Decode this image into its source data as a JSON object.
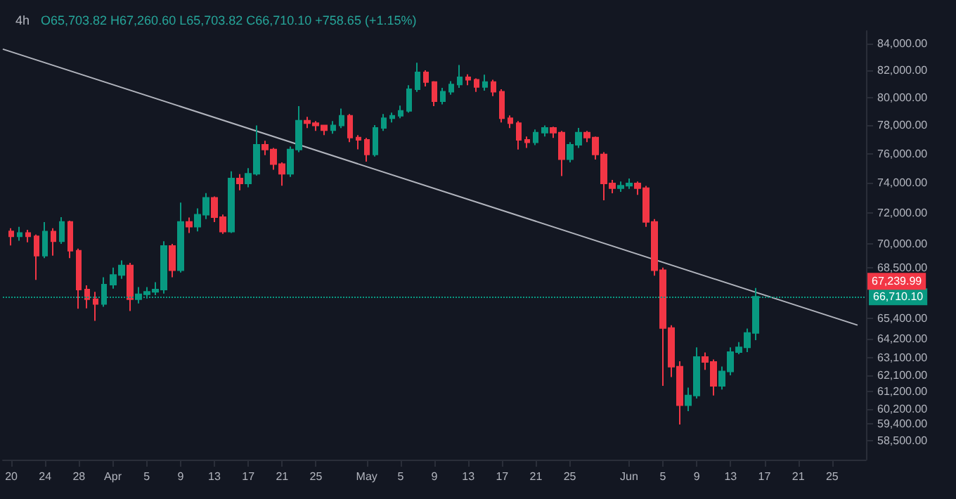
{
  "chart_data": {
    "type": "candlestick",
    "title": "4h",
    "subtitle": "O65,703.82 H67,260.60 L65,703.82 C66,710.10 +758.65 (+1.15%)",
    "x": [
      "--03-20",
      "--03-21",
      "--03-22",
      "--03-23",
      "--03-24",
      "--03-25",
      "--03-26",
      "--03-27",
      "--03-28",
      "--03-29",
      "--03-30",
      "--03-31",
      "--04-01",
      "--04-02",
      "--04-03",
      "--04-04",
      "--04-05",
      "--04-06",
      "--04-07",
      "--04-08",
      "--04-09",
      "--04-10",
      "--04-11",
      "--04-12",
      "--04-13",
      "--04-14",
      "--04-15",
      "--04-16",
      "--04-17",
      "--04-18",
      "--04-19",
      "--04-20",
      "--04-21",
      "--04-22",
      "--04-23",
      "--04-24",
      "--04-25",
      "--04-26",
      "--04-27",
      "--04-28",
      "--04-29",
      "--04-30",
      "--05-01",
      "--05-02",
      "--05-03",
      "--05-04",
      "--05-05",
      "--05-06",
      "--05-07",
      "--05-08",
      "--05-09",
      "--05-10",
      "--05-11",
      "--05-12",
      "--05-13",
      "--05-14",
      "--05-15",
      "--05-16",
      "--05-17",
      "--05-18",
      "--05-19",
      "--05-20",
      "--05-21",
      "--05-22",
      "--05-23",
      "--05-24",
      "--05-25",
      "--05-26",
      "--05-27",
      "--05-28",
      "--05-29",
      "--05-30",
      "--05-31",
      "--06-01",
      "--06-02",
      "--06-03",
      "--06-04",
      "--06-05",
      "--06-06",
      "--06-07",
      "--06-08",
      "--06-09",
      "--06-10",
      "--06-11",
      "--06-12",
      "--06-13",
      "--06-14",
      "--06-15",
      "--06-16"
    ],
    "ohlc": [
      [
        70800,
        71000,
        69900,
        70480
      ],
      [
        70480,
        71100,
        70200,
        70700
      ],
      [
        70700,
        70900,
        70100,
        70480
      ],
      [
        70480,
        70600,
        67740,
        69250
      ],
      [
        69250,
        71400,
        69100,
        70790
      ],
      [
        70790,
        71000,
        69250,
        70170
      ],
      [
        70170,
        71730,
        70000,
        71420
      ],
      [
        71420,
        71500,
        69100,
        69560
      ],
      [
        69560,
        69700,
        65980,
        67150
      ],
      [
        67150,
        67400,
        66000,
        66560
      ],
      [
        66560,
        67000,
        65260,
        66270
      ],
      [
        66270,
        67900,
        66100,
        67450
      ],
      [
        67450,
        68500,
        67200,
        68040
      ],
      [
        68040,
        68950,
        67800,
        68640
      ],
      [
        68640,
        68800,
        65840,
        66560
      ],
      [
        66560,
        67300,
        66300,
        66860
      ],
      [
        66860,
        67300,
        66600,
        67000
      ],
      [
        67000,
        67600,
        66800,
        67150
      ],
      [
        67150,
        70170,
        66900,
        69870
      ],
      [
        69870,
        70000,
        67900,
        68340
      ],
      [
        68340,
        72680,
        68200,
        71420
      ],
      [
        71420,
        71700,
        70700,
        71110
      ],
      [
        71110,
        72300,
        70800,
        71890
      ],
      [
        71890,
        73320,
        71600,
        73000
      ],
      [
        73000,
        73100,
        71400,
        71730
      ],
      [
        71730,
        71900,
        70640,
        70790
      ],
      [
        70790,
        74790,
        70700,
        74300
      ],
      [
        74300,
        74600,
        73500,
        73970
      ],
      [
        73970,
        75000,
        73700,
        74620
      ],
      [
        74620,
        77980,
        74500,
        76620
      ],
      [
        76620,
        76900,
        75900,
        76290
      ],
      [
        76290,
        76400,
        74900,
        75280
      ],
      [
        75280,
        75400,
        73810,
        74620
      ],
      [
        74620,
        76500,
        74400,
        76290
      ],
      [
        76290,
        79370,
        76100,
        78320
      ],
      [
        78320,
        78600,
        77800,
        78150
      ],
      [
        78150,
        78300,
        77600,
        77980
      ],
      [
        77980,
        78000,
        77300,
        77640
      ],
      [
        77640,
        78300,
        77400,
        77980
      ],
      [
        77980,
        79190,
        77800,
        78670
      ],
      [
        78670,
        78800,
        76800,
        77130
      ],
      [
        77130,
        77300,
        76300,
        76960
      ],
      [
        76960,
        77100,
        75450,
        75950
      ],
      [
        75950,
        78000,
        75800,
        77810
      ],
      [
        77810,
        78800,
        77600,
        78500
      ],
      [
        78500,
        78900,
        78200,
        78670
      ],
      [
        78670,
        79400,
        78500,
        79020
      ],
      [
        79020,
        80900,
        78900,
        80600
      ],
      [
        80600,
        82570,
        80400,
        81850
      ],
      [
        81850,
        82000,
        80800,
        81130
      ],
      [
        81130,
        81200,
        79370,
        79720
      ],
      [
        79720,
        80700,
        79500,
        80420
      ],
      [
        80420,
        81200,
        80200,
        80950
      ],
      [
        80950,
        82400,
        80700,
        81480
      ],
      [
        81480,
        81700,
        80900,
        81300
      ],
      [
        81300,
        81400,
        80400,
        80770
      ],
      [
        80770,
        81670,
        80500,
        81130
      ],
      [
        81130,
        81300,
        80100,
        80420
      ],
      [
        80420,
        80600,
        78200,
        78500
      ],
      [
        78500,
        78700,
        77800,
        78150
      ],
      [
        78150,
        78300,
        76290,
        76960
      ],
      [
        76960,
        77200,
        76400,
        76790
      ],
      [
        76790,
        77700,
        76600,
        77470
      ],
      [
        77470,
        77980,
        77200,
        77810
      ],
      [
        77810,
        77900,
        77100,
        77470
      ],
      [
        77470,
        77600,
        74460,
        75620
      ],
      [
        75620,
        76800,
        75400,
        76620
      ],
      [
        76620,
        77810,
        76400,
        77470
      ],
      [
        77470,
        77600,
        76800,
        77130
      ],
      [
        77130,
        77200,
        75600,
        75950
      ],
      [
        75950,
        76100,
        72840,
        73970
      ],
      [
        73970,
        74200,
        73300,
        73650
      ],
      [
        73650,
        74100,
        73400,
        73810
      ],
      [
        73810,
        74300,
        73600,
        73970
      ],
      [
        73970,
        74100,
        73200,
        73650
      ],
      [
        73650,
        73800,
        71100,
        71420
      ],
      [
        71420,
        71600,
        68000,
        68340
      ],
      [
        68340,
        68500,
        61500,
        64830
      ],
      [
        64830,
        65000,
        62000,
        62590
      ],
      [
        62590,
        62900,
        59370,
        60430
      ],
      [
        60430,
        61400,
        60100,
        60960
      ],
      [
        60960,
        63700,
        60800,
        63140
      ],
      [
        63140,
        63400,
        62400,
        62860
      ],
      [
        62860,
        63000,
        60960,
        61500
      ],
      [
        61500,
        62600,
        61300,
        62310
      ],
      [
        62310,
        63700,
        62100,
        63420
      ],
      [
        63420,
        64000,
        63300,
        63700
      ],
      [
        63700,
        64800,
        63420,
        64540
      ],
      [
        64540,
        67240,
        64120,
        66710
      ]
    ],
    "colors": [
      "#f23645",
      "#089981",
      "#f23645",
      "#f23645",
      "#089981",
      "#f23645",
      "#089981",
      "#f23645",
      "#f23645",
      "#f23645",
      "#f23645",
      "#089981",
      "#089981",
      "#089981",
      "#f23645",
      "#089981",
      "#089981",
      "#089981",
      "#089981",
      "#f23645",
      "#089981",
      "#f23645",
      "#089981",
      "#089981",
      "#f23645",
      "#f23645",
      "#089981",
      "#f23645",
      "#089981",
      "#089981",
      "#f23645",
      "#f23645",
      "#f23645",
      "#089981",
      "#089981",
      "#f23645",
      "#f23645",
      "#f23645",
      "#089981",
      "#089981",
      "#f23645",
      "#f23645",
      "#f23645",
      "#089981",
      "#089981",
      "#089981",
      "#089981",
      "#089981",
      "#089981",
      "#f23645",
      "#f23645",
      "#089981",
      "#089981",
      "#089981",
      "#f23645",
      "#f23645",
      "#089981",
      "#f23645",
      "#f23645",
      "#f23645",
      "#f23645",
      "#f23645",
      "#089981",
      "#089981",
      "#f23645",
      "#f23645",
      "#089981",
      "#089981",
      "#f23645",
      "#f23645",
      "#f23645",
      "#f23645",
      "#089981",
      "#089981",
      "#f23645",
      "#f23645",
      "#f23645",
      "#f23645",
      "#f23645",
      "#f23645",
      "#089981",
      "#089981",
      "#f23645",
      "#f23645",
      "#089981",
      "#089981",
      "#089981",
      "#089981",
      "#089981"
    ],
    "series": [
      {
        "type": "line",
        "x": [
          "--03-19",
          "--06-28"
        ],
        "values": [
          83600,
          65000
        ],
        "color": "#b2b5be"
      }
    ],
    "marker": "none",
    "log": "y",
    "xlim": [
      "--03-19",
      "--06-29"
    ],
    "xticks": [
      {
        "value": "--03-20",
        "label": "20"
      },
      {
        "value": "--03-24",
        "label": "24"
      },
      {
        "value": "--03-28",
        "label": "28"
      },
      {
        "value": "--04-01",
        "label": "Apr"
      },
      {
        "value": "--04-05",
        "label": "5"
      },
      {
        "value": "--04-09",
        "label": "9"
      },
      {
        "value": "--04-13",
        "label": "13"
      },
      {
        "value": "--04-17",
        "label": "17"
      },
      {
        "value": "--04-21",
        "label": "21"
      },
      {
        "value": "--04-25",
        "label": "25"
      },
      {
        "value": "--05-01",
        "label": "May"
      },
      {
        "value": "--05-05",
        "label": "5"
      },
      {
        "value": "--05-09",
        "label": "9"
      },
      {
        "value": "--05-13",
        "label": "13"
      },
      {
        "value": "--05-17",
        "label": "17"
      },
      {
        "value": "--05-21",
        "label": "21"
      },
      {
        "value": "--05-25",
        "label": "25"
      },
      {
        "value": "--06-01",
        "label": "Jun"
      },
      {
        "value": "--06-05",
        "label": "5"
      },
      {
        "value": "--06-09",
        "label": "9"
      },
      {
        "value": "--06-13",
        "label": "13"
      },
      {
        "value": "--06-17",
        "label": "17"
      },
      {
        "value": "--06-21",
        "label": "21"
      },
      {
        "value": "--06-25",
        "label": "25"
      }
    ],
    "ylim": [
      57500,
      85000
    ],
    "yticks": [
      {
        "value": 84000,
        "label": "84,000.00"
      },
      {
        "value": 82000,
        "label": "82,000.00"
      },
      {
        "value": 80000,
        "label": "80,000.00"
      },
      {
        "value": 78000,
        "label": "78,000.00"
      },
      {
        "value": 76000,
        "label": "76,000.00"
      },
      {
        "value": 74000,
        "label": "74,000.00"
      },
      {
        "value": 72000,
        "label": "72,000.00"
      },
      {
        "value": 70000,
        "label": "70,000.00"
      },
      {
        "value": 68500,
        "label": "68,500.00"
      },
      {
        "value": 65400,
        "label": "65,400.00"
      },
      {
        "value": 64200,
        "label": "64,200.00"
      },
      {
        "value": 63100,
        "label": "63,100.00"
      },
      {
        "value": 62100,
        "label": "62,100.00"
      },
      {
        "value": 61200,
        "label": "61,200.00"
      },
      {
        "value": 60200,
        "label": "60,200.00"
      },
      {
        "value": 59400,
        "label": "59,400.00"
      },
      {
        "value": 58500,
        "label": "58,500.00"
      }
    ],
    "ref_lines": [
      {
        "axis": "y",
        "value": 66710.1,
        "label": "66,710.10",
        "color": "#089981",
        "line_style": "dotted"
      }
    ],
    "annotations": [
      "67,239.99"
    ],
    "grid": false
  }
}
